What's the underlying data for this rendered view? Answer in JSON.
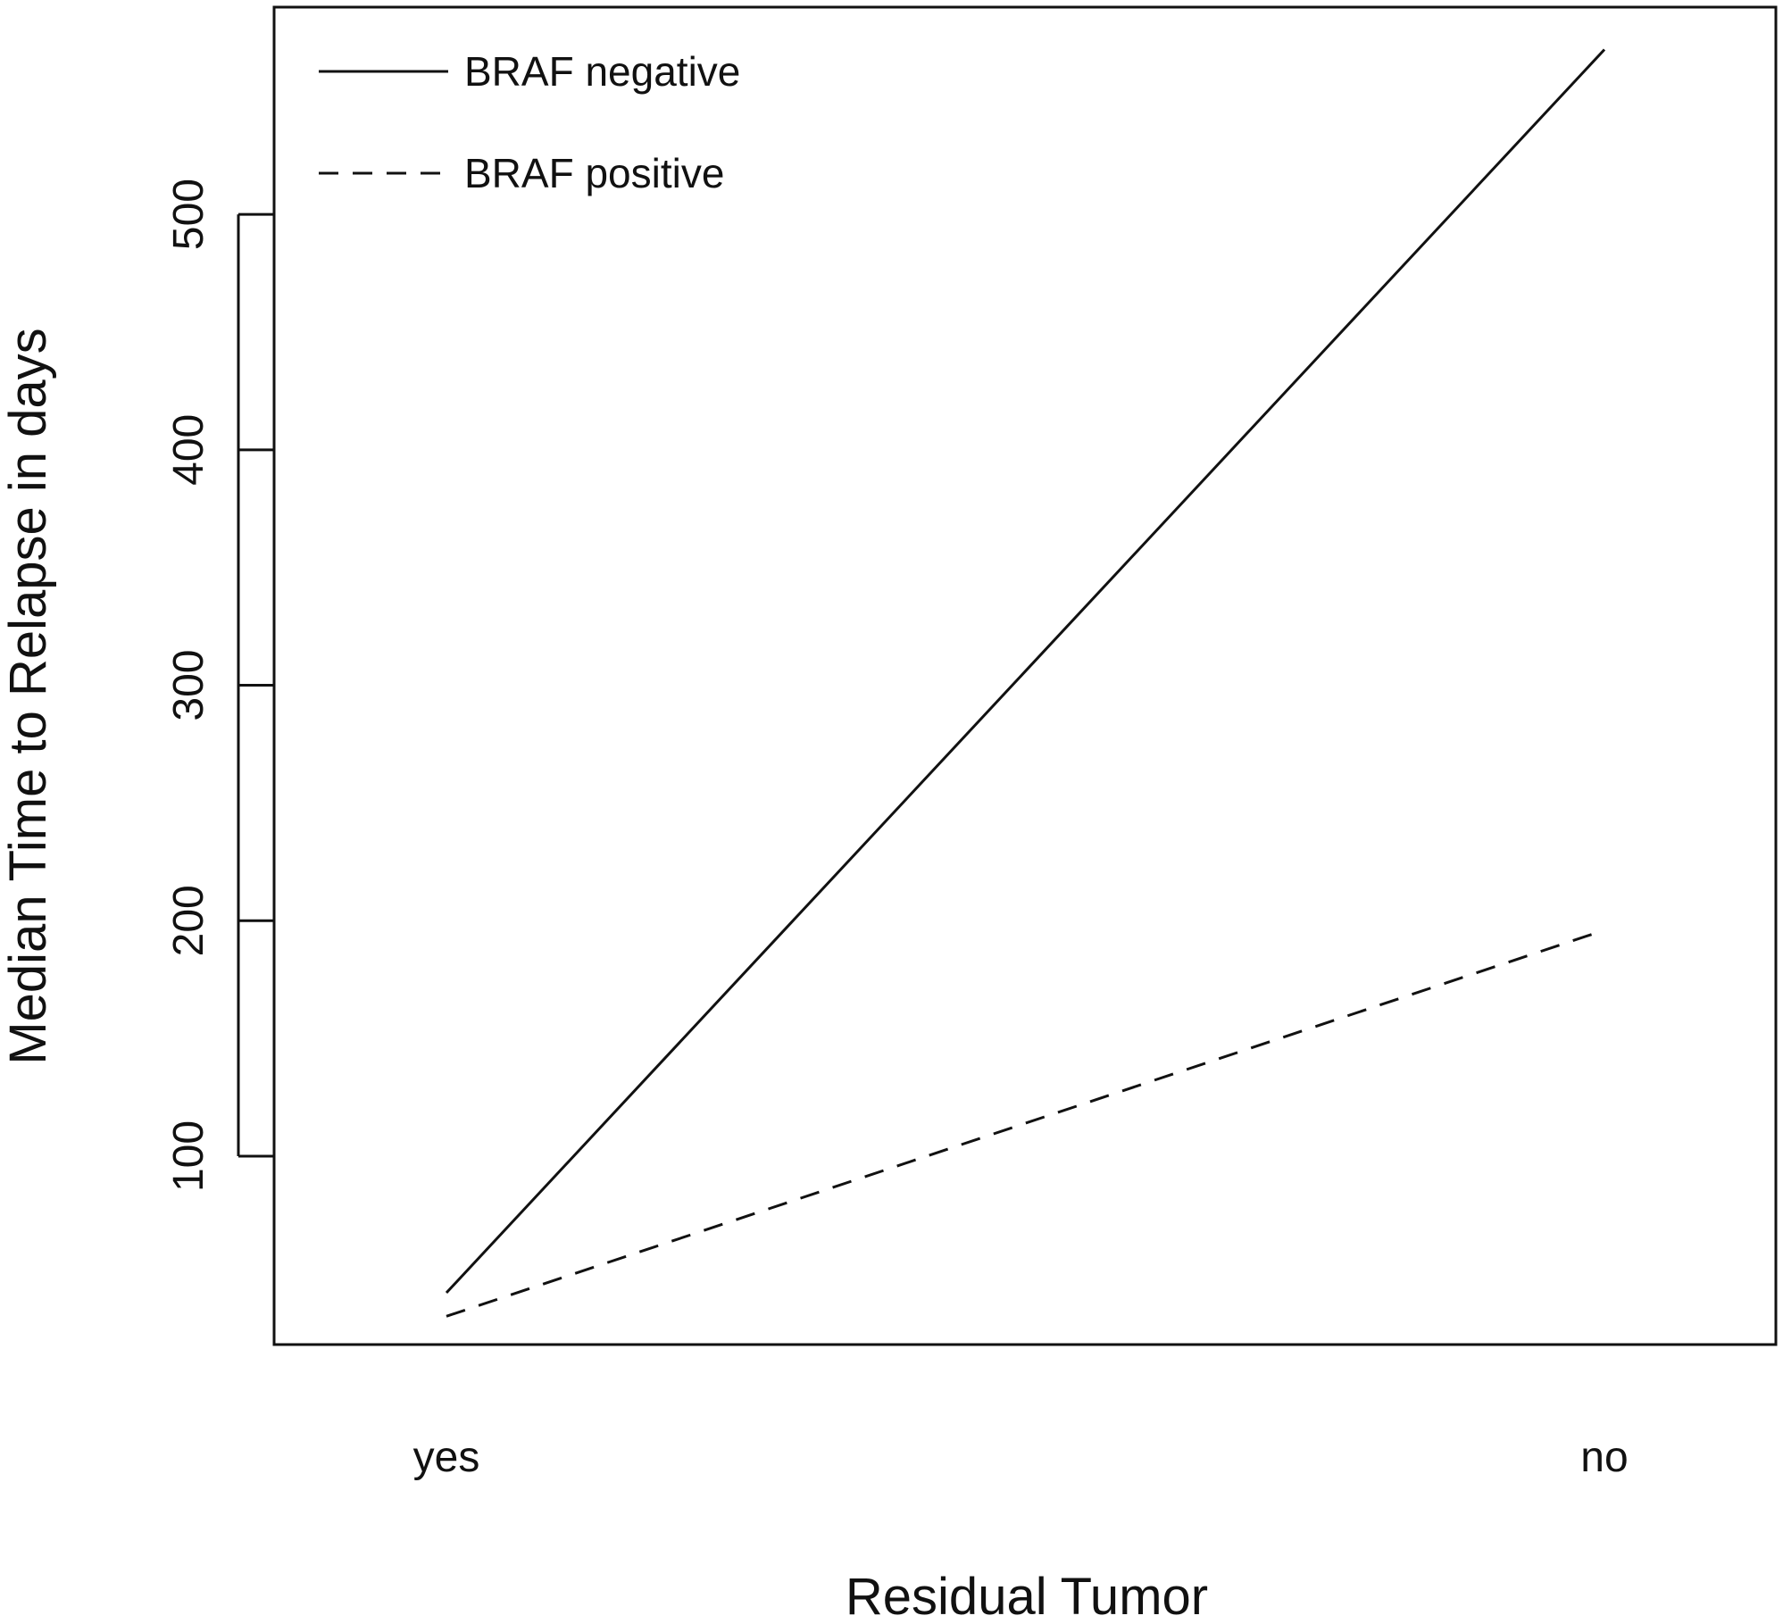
{
  "chart_data": {
    "type": "line",
    "categories": [
      "yes",
      "no"
    ],
    "series": [
      {
        "name": "BRAF negative",
        "values": [
          42,
          570
        ],
        "line_style": "solid"
      },
      {
        "name": "BRAF positive",
        "values": [
          32,
          196
        ],
        "line_style": "dashed"
      }
    ],
    "xlabel": "Residual Tumor",
    "ylabel": "Median Time to Relapse in days",
    "yticks": [
      100,
      200,
      300,
      400,
      500
    ],
    "ylim": [
      20,
      588
    ],
    "grid": false,
    "legend_position": "top-left",
    "line_color": "#111111"
  }
}
